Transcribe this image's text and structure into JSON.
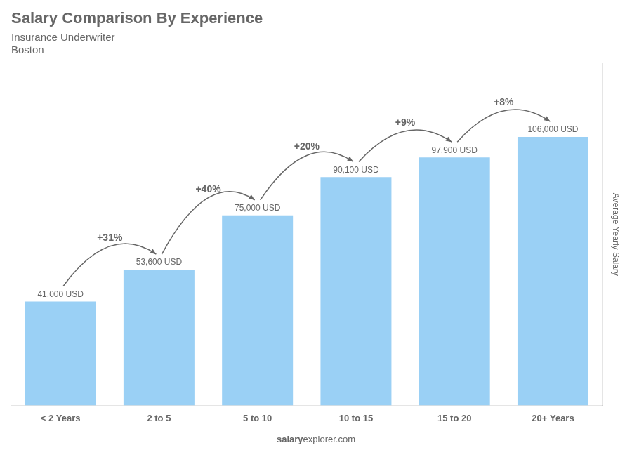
{
  "chart_data": {
    "type": "bar",
    "title": "Salary Comparison By Experience",
    "subtitle": [
      "Insurance Underwriter",
      "Boston"
    ],
    "categories": [
      "< 2 Years",
      "2 to 5",
      "5 to 10",
      "10 to 15",
      "15 to 20",
      "20+ Years"
    ],
    "values": [
      41000,
      53600,
      75000,
      90100,
      97900,
      106000
    ],
    "value_labels": [
      "41,000 USD",
      "53,600 USD",
      "75,000 USD",
      "90,100 USD",
      "97,900 USD",
      "106,000 USD"
    ],
    "data_labels": true,
    "annotations": [
      null,
      "+31%",
      "+40%",
      "+20%",
      "+9%",
      "+8%"
    ],
    "ylabel": "Average Yearly Salary",
    "ylim": [
      0,
      135000
    ],
    "tick_labels": "x",
    "grid": false,
    "watermark": [
      "salary",
      "explorer.com"
    ]
  }
}
